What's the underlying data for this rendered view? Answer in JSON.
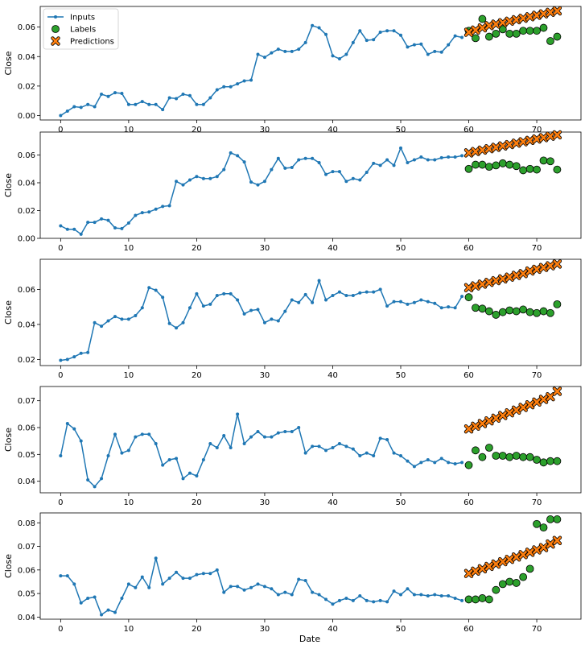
{
  "figure": {
    "xlabel": "Date",
    "legend": {
      "placement": "top-left",
      "entries": [
        {
          "name": "Inputs",
          "marker": "line-dot",
          "color": "#1f77b4"
        },
        {
          "name": "Labels",
          "marker": "circle",
          "color": "#2ca02c"
        },
        {
          "name": "Predictions",
          "marker": "x",
          "color": "#ff7f0e"
        }
      ]
    }
  },
  "chart_data": [
    {
      "type": "line",
      "ylabel": "Close",
      "xlim": [
        -3,
        76.5
      ],
      "ylim": [
        -0.003,
        0.074
      ],
      "xticks": [
        0,
        10,
        20,
        30,
        40,
        50,
        60,
        70
      ],
      "yticks": [
        0.0,
        0.02,
        0.04,
        0.06
      ],
      "ytick_labels": [
        "0.00",
        "0.02",
        "0.04",
        "0.06"
      ],
      "series": [
        {
          "name": "Inputs",
          "kind": "line",
          "x_start": 0,
          "values": [
            0.0,
            0.003,
            0.006,
            0.0055,
            0.0075,
            0.006,
            0.0145,
            0.013,
            0.0155,
            0.015,
            0.0075,
            0.0075,
            0.0095,
            0.0075,
            0.0075,
            0.004,
            0.012,
            0.0115,
            0.0145,
            0.0135,
            0.0075,
            0.0075,
            0.012,
            0.0175,
            0.0195,
            0.0195,
            0.0215,
            0.0235,
            0.024,
            0.0415,
            0.0395,
            0.0425,
            0.045,
            0.0435,
            0.0435,
            0.045,
            0.0495,
            0.061,
            0.0595,
            0.055,
            0.0405,
            0.0385,
            0.0415,
            0.0495,
            0.0575,
            0.051,
            0.0515,
            0.0565,
            0.0575,
            0.0575,
            0.0545,
            0.0465,
            0.048,
            0.0485,
            0.0415,
            0.0435,
            0.043,
            0.048,
            0.054,
            0.053
          ]
        },
        {
          "name": "Labels",
          "kind": "points",
          "x": [
            60,
            61,
            62,
            63,
            64,
            65,
            66,
            67,
            68,
            69,
            70,
            71,
            72,
            73
          ],
          "values": [
            0.0575,
            0.0525,
            0.0655,
            0.0535,
            0.0555,
            0.0585,
            0.0555,
            0.0555,
            0.0575,
            0.0575,
            0.0575,
            0.0595,
            0.0505,
            0.0535
          ]
        },
        {
          "name": "Predictions",
          "kind": "points",
          "x": [
            60,
            61,
            62,
            63,
            64,
            65,
            66,
            67,
            68,
            69,
            70,
            71,
            72,
            73
          ],
          "values": [
            0.0565,
            0.058,
            0.0595,
            0.061,
            0.062,
            0.063,
            0.064,
            0.065,
            0.066,
            0.067,
            0.068,
            0.069,
            0.07,
            0.071
          ]
        }
      ]
    },
    {
      "type": "line",
      "ylabel": "Close",
      "xlim": [
        -3,
        76.5
      ],
      "ylim": [
        0.0,
        0.0765
      ],
      "xticks": [
        0,
        10,
        20,
        30,
        40,
        50,
        60,
        70
      ],
      "yticks": [
        0.0,
        0.02,
        0.04,
        0.06
      ],
      "ytick_labels": [
        "0.00",
        "0.02",
        "0.04",
        "0.06"
      ],
      "series": [
        {
          "name": "Inputs",
          "kind": "line",
          "x_start": 0,
          "values": [
            0.009,
            0.0065,
            0.0065,
            0.003,
            0.0115,
            0.0115,
            0.014,
            0.013,
            0.0075,
            0.007,
            0.011,
            0.0165,
            0.0185,
            0.019,
            0.021,
            0.023,
            0.0235,
            0.041,
            0.0385,
            0.042,
            0.0445,
            0.043,
            0.043,
            0.0445,
            0.0495,
            0.0615,
            0.0595,
            0.055,
            0.0405,
            0.0385,
            0.041,
            0.0495,
            0.0575,
            0.0505,
            0.051,
            0.0565,
            0.0575,
            0.0575,
            0.0545,
            0.046,
            0.048,
            0.048,
            0.041,
            0.043,
            0.042,
            0.0475,
            0.054,
            0.0525,
            0.0565,
            0.0525,
            0.065,
            0.0545,
            0.0565,
            0.0585,
            0.0565,
            0.0565,
            0.058,
            0.0585,
            0.0585,
            0.0595
          ]
        },
        {
          "name": "Labels",
          "kind": "points",
          "x": [
            60,
            61,
            62,
            63,
            64,
            65,
            66,
            67,
            68,
            69,
            70,
            71,
            72,
            73
          ],
          "values": [
            0.05,
            0.053,
            0.053,
            0.0515,
            0.0525,
            0.054,
            0.053,
            0.052,
            0.049,
            0.05,
            0.0495,
            0.056,
            0.0555,
            0.0495
          ]
        },
        {
          "name": "Predictions",
          "kind": "points",
          "x": [
            60,
            61,
            62,
            63,
            64,
            65,
            66,
            67,
            68,
            69,
            70,
            71,
            72,
            73
          ],
          "values": [
            0.0615,
            0.0625,
            0.0635,
            0.0645,
            0.0655,
            0.0665,
            0.0675,
            0.0685,
            0.0695,
            0.0705,
            0.0715,
            0.0725,
            0.0735,
            0.0745
          ]
        }
      ]
    },
    {
      "type": "line",
      "ylabel": "Close",
      "xlim": [
        -3,
        76.5
      ],
      "ylim": [
        0.0165,
        0.0772
      ],
      "xticks": [
        0,
        10,
        20,
        30,
        40,
        50,
        60,
        70
      ],
      "yticks": [
        0.02,
        0.04,
        0.06
      ],
      "ytick_labels": [
        "0.02",
        "0.04",
        "0.06"
      ],
      "series": [
        {
          "name": "Inputs",
          "kind": "line",
          "x_start": 0,
          "values": [
            0.0195,
            0.02,
            0.0215,
            0.0235,
            0.024,
            0.041,
            0.039,
            0.042,
            0.0445,
            0.043,
            0.043,
            0.045,
            0.0495,
            0.061,
            0.0595,
            0.0555,
            0.0405,
            0.038,
            0.041,
            0.0495,
            0.0575,
            0.0505,
            0.0515,
            0.0565,
            0.0575,
            0.0575,
            0.054,
            0.046,
            0.048,
            0.0485,
            0.041,
            0.043,
            0.042,
            0.0475,
            0.054,
            0.0525,
            0.057,
            0.0525,
            0.065,
            0.054,
            0.0565,
            0.0585,
            0.0565,
            0.0565,
            0.058,
            0.0585,
            0.0585,
            0.06,
            0.0505,
            0.053,
            0.053,
            0.0515,
            0.0525,
            0.054,
            0.053,
            0.052,
            0.0495,
            0.05,
            0.0495,
            0.056
          ]
        },
        {
          "name": "Labels",
          "kind": "points",
          "x": [
            60,
            61,
            62,
            63,
            64,
            65,
            66,
            67,
            68,
            69,
            70,
            71,
            72,
            73
          ],
          "values": [
            0.0555,
            0.0495,
            0.049,
            0.0475,
            0.0455,
            0.047,
            0.048,
            0.0475,
            0.0485,
            0.047,
            0.0465,
            0.0475,
            0.0465,
            0.0515
          ]
        },
        {
          "name": "Predictions",
          "kind": "points",
          "x": [
            60,
            61,
            62,
            63,
            64,
            65,
            66,
            67,
            68,
            69,
            70,
            71,
            72,
            73
          ],
          "values": [
            0.061,
            0.062,
            0.063,
            0.064,
            0.065,
            0.066,
            0.067,
            0.068,
            0.069,
            0.0705,
            0.0715,
            0.0725,
            0.0735,
            0.0745
          ]
        }
      ]
    },
    {
      "type": "line",
      "ylabel": "Close",
      "xlim": [
        -3,
        76.5
      ],
      "ylim": [
        0.0357,
        0.0753
      ],
      "xticks": [
        0,
        10,
        20,
        30,
        40,
        50,
        60,
        70
      ],
      "yticks": [
        0.04,
        0.05,
        0.06,
        0.07
      ],
      "ytick_labels": [
        "0.04",
        "0.05",
        "0.06",
        "0.07"
      ],
      "series": [
        {
          "name": "Inputs",
          "kind": "line",
          "x_start": 0,
          "values": [
            0.0495,
            0.0615,
            0.0595,
            0.055,
            0.0405,
            0.038,
            0.041,
            0.0495,
            0.0575,
            0.0505,
            0.0515,
            0.0565,
            0.0575,
            0.0575,
            0.054,
            0.046,
            0.048,
            0.0485,
            0.041,
            0.043,
            0.042,
            0.048,
            0.054,
            0.0525,
            0.057,
            0.0525,
            0.065,
            0.054,
            0.0565,
            0.0585,
            0.0565,
            0.0565,
            0.058,
            0.0585,
            0.0585,
            0.06,
            0.0505,
            0.053,
            0.053,
            0.0515,
            0.0525,
            0.054,
            0.053,
            0.052,
            0.0495,
            0.0505,
            0.0495,
            0.056,
            0.0555,
            0.0505,
            0.0495,
            0.0475,
            0.0455,
            0.047,
            0.048,
            0.047,
            0.0485,
            0.047,
            0.0465,
            0.047
          ]
        },
        {
          "name": "Labels",
          "kind": "points",
          "x": [
            60,
            61,
            62,
            63,
            64,
            65,
            66,
            67,
            68,
            69,
            70,
            71,
            72,
            73
          ],
          "values": [
            0.046,
            0.0515,
            0.049,
            0.0525,
            0.0495,
            0.0495,
            0.049,
            0.0495,
            0.049,
            0.049,
            0.048,
            0.047,
            0.0475,
            0.0475
          ]
        },
        {
          "name": "Predictions",
          "kind": "points",
          "x": [
            60,
            61,
            62,
            63,
            64,
            65,
            66,
            67,
            68,
            69,
            70,
            71,
            72,
            73
          ],
          "values": [
            0.0595,
            0.0605,
            0.0615,
            0.0625,
            0.0635,
            0.0645,
            0.0655,
            0.0665,
            0.0675,
            0.0685,
            0.0695,
            0.0705,
            0.0715,
            0.0735
          ]
        }
      ]
    },
    {
      "type": "line",
      "ylabel": "Close",
      "xlim": [
        -3,
        76.5
      ],
      "ylim": [
        0.0391,
        0.0842
      ],
      "xticks": [
        0,
        10,
        20,
        30,
        40,
        50,
        60,
        70
      ],
      "yticks": [
        0.04,
        0.05,
        0.06,
        0.07,
        0.08
      ],
      "ytick_labels": [
        "0.04",
        "0.05",
        "0.06",
        "0.07",
        "0.08"
      ],
      "series": [
        {
          "name": "Inputs",
          "kind": "line",
          "x_start": 0,
          "values": [
            0.0575,
            0.0575,
            0.054,
            0.046,
            0.048,
            0.0485,
            0.041,
            0.043,
            0.042,
            0.048,
            0.054,
            0.0525,
            0.057,
            0.0525,
            0.065,
            0.054,
            0.0565,
            0.059,
            0.0565,
            0.0565,
            0.058,
            0.0585,
            0.0585,
            0.06,
            0.0505,
            0.053,
            0.053,
            0.0515,
            0.0525,
            0.054,
            0.053,
            0.052,
            0.0495,
            0.0505,
            0.0495,
            0.056,
            0.0555,
            0.0505,
            0.0495,
            0.0475,
            0.0455,
            0.047,
            0.048,
            0.047,
            0.049,
            0.047,
            0.0465,
            0.047,
            0.0465,
            0.051,
            0.0495,
            0.052,
            0.0495,
            0.0495,
            0.049,
            0.0495,
            0.049,
            0.049,
            0.048,
            0.047
          ]
        },
        {
          "name": "Labels",
          "kind": "points",
          "x": [
            60,
            61,
            62,
            63,
            64,
            65,
            66,
            67,
            68,
            69,
            70,
            71,
            72,
            73
          ],
          "values": [
            0.0475,
            0.0475,
            0.048,
            0.0475,
            0.0515,
            0.054,
            0.055,
            0.0545,
            0.057,
            0.0605,
            0.0795,
            0.078,
            0.0815,
            0.0815
          ]
        },
        {
          "name": "Predictions",
          "kind": "points",
          "x": [
            60,
            61,
            62,
            63,
            64,
            65,
            66,
            67,
            68,
            69,
            70,
            71,
            72,
            73
          ],
          "values": [
            0.0585,
            0.0595,
            0.0605,
            0.0615,
            0.0625,
            0.0635,
            0.0645,
            0.0655,
            0.0665,
            0.0675,
            0.0685,
            0.0695,
            0.071,
            0.0725
          ]
        }
      ]
    }
  ]
}
